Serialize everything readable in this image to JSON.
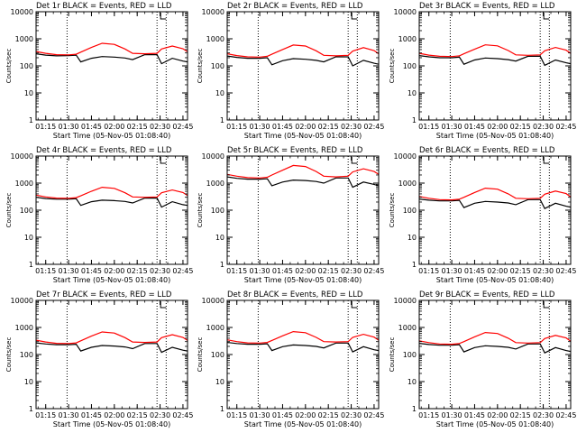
{
  "figure": {
    "x_tick_labels": [
      "01:15",
      "01:30",
      "01:45",
      "02:00",
      "02:15",
      "02:30",
      "02:45"
    ],
    "x_axis_label": "Start Time (05-Nov-05 01:08:40)",
    "y_axis_label": "Counts/sec",
    "y_tick_labels": [
      "1",
      "10",
      "100",
      "1000",
      "10000"
    ],
    "colors": {
      "events": "#000000",
      "lld": "#ff0000",
      "axes": "#000000",
      "background": "#ffffff"
    }
  },
  "chart_data": [
    {
      "type": "line",
      "title": "Det 1r BLACK = Events, RED = LLD",
      "xlabel": "Start Time (05-Nov-05 01:08:40)",
      "ylabel": "Counts/sec",
      "y_scale": "log",
      "ylim": [
        1,
        10000
      ],
      "xlim": [
        "01:08:40",
        "02:48:00"
      ],
      "vertical_markers": [
        "01:29:00",
        "02:28:00",
        "02:34:00"
      ],
      "series": [
        {
          "name": "Events",
          "color": "#000000",
          "x": [
            "01:08:40",
            "01:15",
            "01:22",
            "01:30",
            "01:35",
            "01:38",
            "01:45",
            "01:52",
            "02:00",
            "02:07",
            "02:12",
            "02:20",
            "02:28",
            "02:31",
            "02:38",
            "02:45",
            "02:48"
          ],
          "y": [
            280,
            250,
            235,
            240,
            250,
            140,
            190,
            220,
            210,
            195,
            170,
            260,
            260,
            120,
            190,
            150,
            140
          ]
        },
        {
          "name": "LLD",
          "color": "#ff0000",
          "x": [
            "01:08:40",
            "01:15",
            "01:22",
            "01:30",
            "01:35",
            "01:38",
            "01:45",
            "01:52",
            "02:00",
            "02:07",
            "02:12",
            "02:20",
            "02:28",
            "02:31",
            "02:38",
            "02:45",
            "02:48"
          ],
          "y": [
            340,
            290,
            260,
            255,
            270,
            320,
            480,
            680,
            620,
            420,
            290,
            280,
            290,
            420,
            540,
            430,
            330
          ]
        }
      ]
    },
    {
      "type": "line",
      "title": "Det 2r BLACK = Events, RED = LLD",
      "xlabel": "Start Time (05-Nov-05 01:08:40)",
      "ylabel": "Counts/sec",
      "y_scale": "log",
      "ylim": [
        1,
        10000
      ],
      "xlim": [
        "01:08:40",
        "02:48:00"
      ],
      "vertical_markers": [
        "01:29:00",
        "02:28:00",
        "02:34:00"
      ],
      "series": [
        {
          "name": "Events",
          "color": "#000000",
          "x": [
            "01:08:40",
            "01:15",
            "01:22",
            "01:30",
            "01:35",
            "01:38",
            "01:45",
            "01:52",
            "02:00",
            "02:07",
            "02:12",
            "02:20",
            "02:28",
            "02:31",
            "02:38",
            "02:45",
            "02:48"
          ],
          "y": [
            230,
            205,
            190,
            190,
            200,
            110,
            155,
            185,
            175,
            160,
            140,
            215,
            215,
            100,
            160,
            125,
            115
          ]
        },
        {
          "name": "LLD",
          "color": "#ff0000",
          "x": [
            "01:08:40",
            "01:15",
            "01:22",
            "01:30",
            "01:35",
            "01:38",
            "01:45",
            "01:52",
            "02:00",
            "02:07",
            "02:12",
            "02:20",
            "02:28",
            "02:31",
            "02:38",
            "02:45",
            "02:48"
          ],
          "y": [
            280,
            240,
            215,
            210,
            225,
            270,
            400,
            590,
            540,
            360,
            245,
            235,
            245,
            350,
            470,
            370,
            280
          ]
        }
      ]
    },
    {
      "type": "line",
      "title": "Det 3r BLACK = Events, RED = LLD",
      "xlabel": "Start Time (05-Nov-05 01:08:40)",
      "ylabel": "Counts/sec",
      "y_scale": "log",
      "ylim": [
        1,
        10000
      ],
      "xlim": [
        "01:08:40",
        "02:48:00"
      ],
      "vertical_markers": [
        "01:29:00",
        "02:28:00",
        "02:34:00"
      ],
      "series": [
        {
          "name": "Events",
          "color": "#000000",
          "x": [
            "01:08:40",
            "01:15",
            "01:22",
            "01:30",
            "01:35",
            "01:38",
            "01:45",
            "01:52",
            "02:00",
            "02:07",
            "02:12",
            "02:20",
            "02:28",
            "02:31",
            "02:38",
            "02:45",
            "02:48"
          ],
          "y": [
            240,
            215,
            200,
            200,
            210,
            115,
            165,
            195,
            185,
            170,
            150,
            225,
            225,
            105,
            165,
            130,
            120
          ]
        },
        {
          "name": "LLD",
          "color": "#ff0000",
          "x": [
            "01:08:40",
            "01:15",
            "01:22",
            "01:30",
            "01:35",
            "01:38",
            "01:45",
            "01:52",
            "02:00",
            "02:07",
            "02:12",
            "02:20",
            "02:28",
            "02:31",
            "02:38",
            "02:45",
            "02:48"
          ],
          "y": [
            290,
            250,
            225,
            220,
            235,
            280,
            410,
            600,
            550,
            370,
            255,
            245,
            255,
            360,
            480,
            380,
            290
          ]
        }
      ]
    },
    {
      "type": "line",
      "title": "Det 4r BLACK = Events, RED = LLD",
      "xlabel": "Start Time (05-Nov-05 01:08:40)",
      "ylabel": "Counts/sec",
      "y_scale": "log",
      "ylim": [
        1,
        10000
      ],
      "xlim": [
        "01:08:40",
        "02:48:00"
      ],
      "vertical_markers": [
        "01:29:00",
        "02:28:00",
        "02:34:00"
      ],
      "series": [
        {
          "name": "Events",
          "color": "#000000",
          "x": [
            "01:08:40",
            "01:15",
            "01:22",
            "01:30",
            "01:35",
            "01:38",
            "01:45",
            "01:52",
            "02:00",
            "02:07",
            "02:12",
            "02:20",
            "02:28",
            "02:31",
            "02:38",
            "02:45",
            "02:48"
          ],
          "y": [
            300,
            270,
            255,
            255,
            265,
            150,
            205,
            235,
            225,
            210,
            185,
            280,
            280,
            130,
            205,
            160,
            150
          ]
        },
        {
          "name": "LLD",
          "color": "#ff0000",
          "x": [
            "01:08:40",
            "01:15",
            "01:22",
            "01:30",
            "01:35",
            "01:38",
            "01:45",
            "01:52",
            "02:00",
            "02:07",
            "02:12",
            "02:20",
            "02:28",
            "02:31",
            "02:38",
            "02:45",
            "02:48"
          ],
          "y": [
            360,
            310,
            280,
            275,
            290,
            340,
            500,
            700,
            640,
            440,
            310,
            300,
            310,
            440,
            560,
            450,
            350
          ]
        }
      ]
    },
    {
      "type": "line",
      "title": "Det 5r BLACK = Events, RED = LLD",
      "xlabel": "Start Time (05-Nov-05 01:08:40)",
      "ylabel": "Counts/sec",
      "y_scale": "log",
      "ylim": [
        1,
        10000
      ],
      "xlim": [
        "01:08:40",
        "02:48:00"
      ],
      "vertical_markers": [
        "01:29:00",
        "02:28:00",
        "02:34:00"
      ],
      "series": [
        {
          "name": "Events",
          "color": "#000000",
          "x": [
            "01:08:40",
            "01:15",
            "01:22",
            "01:30",
            "01:35",
            "01:38",
            "01:45",
            "01:52",
            "02:00",
            "02:07",
            "02:12",
            "02:20",
            "02:28",
            "02:31",
            "02:38",
            "02:45",
            "02:48"
          ],
          "y": [
            1700,
            1500,
            1400,
            1400,
            1450,
            800,
            1100,
            1300,
            1250,
            1150,
            1000,
            1550,
            1550,
            700,
            1100,
            900,
            800
          ]
        },
        {
          "name": "LLD",
          "color": "#ff0000",
          "x": [
            "01:08:40",
            "01:15",
            "01:22",
            "01:30",
            "01:35",
            "01:38",
            "01:45",
            "01:52",
            "02:00",
            "02:07",
            "02:12",
            "02:20",
            "02:28",
            "02:31",
            "02:38",
            "02:45",
            "02:48"
          ],
          "y": [
            2100,
            1800,
            1600,
            1550,
            1650,
            2000,
            3000,
            4500,
            4100,
            2700,
            1800,
            1700,
            1800,
            2600,
            3400,
            2700,
            2100
          ]
        }
      ]
    },
    {
      "type": "line",
      "title": "Det 6r BLACK = Events, RED = LLD",
      "xlabel": "Start Time (05-Nov-05 01:08:40)",
      "ylabel": "Counts/sec",
      "y_scale": "log",
      "ylim": [
        1,
        10000
      ],
      "xlim": [
        "01:08:40",
        "02:48:00"
      ],
      "vertical_markers": [
        "01:29:00",
        "02:28:00",
        "02:34:00"
      ],
      "series": [
        {
          "name": "Events",
          "color": "#000000",
          "x": [
            "01:08:40",
            "01:15",
            "01:22",
            "01:30",
            "01:35",
            "01:38",
            "01:45",
            "01:52",
            "02:00",
            "02:07",
            "02:12",
            "02:20",
            "02:28",
            "02:31",
            "02:38",
            "02:45",
            "02:48"
          ],
          "y": [
            260,
            235,
            220,
            220,
            230,
            125,
            180,
            210,
            200,
            185,
            160,
            245,
            245,
            115,
            180,
            140,
            130
          ]
        },
        {
          "name": "LLD",
          "color": "#ff0000",
          "x": [
            "01:08:40",
            "01:15",
            "01:22",
            "01:30",
            "01:35",
            "01:38",
            "01:45",
            "01:52",
            "02:00",
            "02:07",
            "02:12",
            "02:20",
            "02:28",
            "02:31",
            "02:38",
            "02:45",
            "02:48"
          ],
          "y": [
            320,
            275,
            245,
            240,
            255,
            300,
            450,
            650,
            600,
            400,
            275,
            265,
            275,
            390,
            510,
            410,
            310
          ]
        }
      ]
    },
    {
      "type": "line",
      "title": "Det 7r BLACK = Events, RED = LLD",
      "xlabel": "Start Time (05-Nov-05 01:08:40)",
      "ylabel": "Counts/sec",
      "y_scale": "log",
      "ylim": [
        1,
        10000
      ],
      "xlim": [
        "01:08:40",
        "02:48:00"
      ],
      "vertical_markers": [
        "01:29:00",
        "02:28:00",
        "02:34:00"
      ],
      "series": [
        {
          "name": "Events",
          "color": "#000000",
          "x": [
            "01:08:40",
            "01:15",
            "01:22",
            "01:30",
            "01:35",
            "01:38",
            "01:45",
            "01:52",
            "02:00",
            "02:07",
            "02:12",
            "02:20",
            "02:28",
            "02:31",
            "02:38",
            "02:45",
            "02:48"
          ],
          "y": [
            270,
            245,
            230,
            230,
            240,
            135,
            185,
            215,
            205,
            190,
            165,
            255,
            255,
            120,
            185,
            145,
            135
          ]
        },
        {
          "name": "LLD",
          "color": "#ff0000",
          "x": [
            "01:08:40",
            "01:15",
            "01:22",
            "01:30",
            "01:35",
            "01:38",
            "01:45",
            "01:52",
            "02:00",
            "02:07",
            "02:12",
            "02:20",
            "02:28",
            "02:31",
            "02:38",
            "02:45",
            "02:48"
          ],
          "y": [
            340,
            290,
            260,
            255,
            270,
            320,
            480,
            680,
            620,
            420,
            290,
            280,
            290,
            420,
            540,
            430,
            330
          ]
        }
      ]
    },
    {
      "type": "line",
      "title": "Det 8r BLACK = Events, RED = LLD",
      "xlabel": "Start Time (05-Nov-05 01:08:40)",
      "ylabel": "Counts/sec",
      "y_scale": "log",
      "ylim": [
        1,
        10000
      ],
      "xlim": [
        "01:08:40",
        "02:48:00"
      ],
      "vertical_markers": [
        "01:29:00",
        "02:28:00",
        "02:34:00"
      ],
      "series": [
        {
          "name": "Events",
          "color": "#000000",
          "x": [
            "01:08:40",
            "01:15",
            "01:22",
            "01:30",
            "01:35",
            "01:38",
            "01:45",
            "01:52",
            "02:00",
            "02:07",
            "02:12",
            "02:20",
            "02:28",
            "02:31",
            "02:38",
            "02:45",
            "02:48"
          ],
          "y": [
            280,
            255,
            240,
            240,
            250,
            140,
            195,
            225,
            215,
            200,
            175,
            265,
            265,
            125,
            195,
            150,
            140
          ]
        },
        {
          "name": "LLD",
          "color": "#ff0000",
          "x": [
            "01:08:40",
            "01:15",
            "01:22",
            "01:30",
            "01:35",
            "01:38",
            "01:45",
            "01:52",
            "02:00",
            "02:07",
            "02:12",
            "02:20",
            "02:28",
            "02:31",
            "02:38",
            "02:45",
            "02:48"
          ],
          "y": [
            350,
            300,
            270,
            265,
            280,
            330,
            490,
            700,
            640,
            430,
            300,
            290,
            300,
            430,
            560,
            440,
            340
          ]
        }
      ]
    },
    {
      "type": "line",
      "title": "Det 9r BLACK = Events, RED = LLD",
      "xlabel": "Start Time (05-Nov-05 01:08:40)",
      "ylabel": "Counts/sec",
      "y_scale": "log",
      "ylim": [
        1,
        10000
      ],
      "xlim": [
        "01:08:40",
        "02:48:00"
      ],
      "vertical_markers": [
        "01:29:00",
        "02:28:00",
        "02:34:00"
      ],
      "series": [
        {
          "name": "Events",
          "color": "#000000",
          "x": [
            "01:08:40",
            "01:15",
            "01:22",
            "01:30",
            "01:35",
            "01:38",
            "01:45",
            "01:52",
            "02:00",
            "02:07",
            "02:12",
            "02:20",
            "02:28",
            "02:31",
            "02:38",
            "02:45",
            "02:48"
          ],
          "y": [
            260,
            235,
            220,
            220,
            230,
            125,
            180,
            210,
            200,
            185,
            160,
            245,
            245,
            115,
            180,
            140,
            130
          ]
        },
        {
          "name": "LLD",
          "color": "#ff0000",
          "x": [
            "01:08:40",
            "01:15",
            "01:22",
            "01:30",
            "01:35",
            "01:38",
            "01:45",
            "01:52",
            "02:00",
            "02:07",
            "02:12",
            "02:20",
            "02:28",
            "02:31",
            "02:38",
            "02:45",
            "02:48"
          ],
          "y": [
            320,
            275,
            245,
            240,
            255,
            300,
            450,
            650,
            600,
            400,
            275,
            265,
            275,
            390,
            510,
            410,
            310
          ]
        }
      ]
    }
  ]
}
